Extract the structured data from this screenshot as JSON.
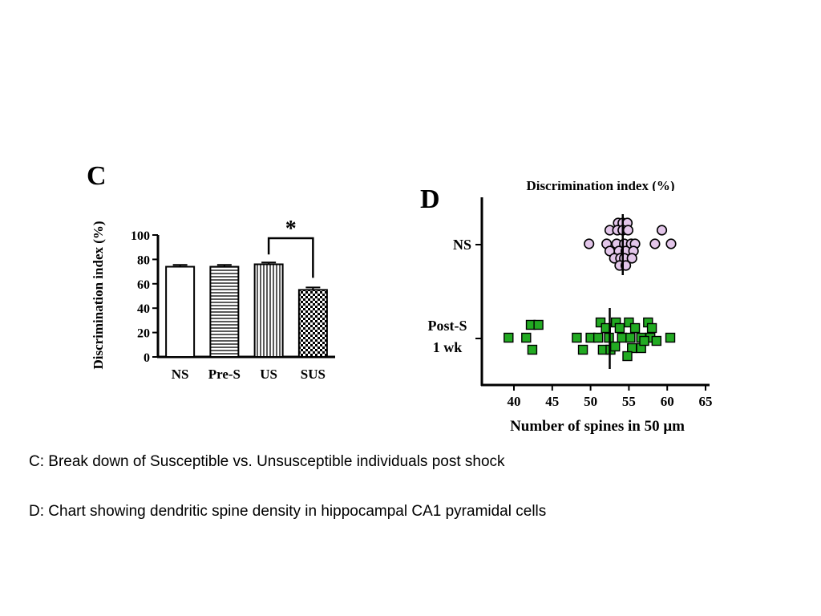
{
  "chart_data": [
    {
      "panel_label": "C",
      "type": "bar",
      "ylabel": "Discrimination index (%)",
      "ylim": [
        0,
        100
      ],
      "yticks": [
        0,
        20,
        40,
        60,
        80,
        100
      ],
      "categories": [
        "NS",
        "Pre-S",
        "US",
        "SUS"
      ],
      "values": [
        74,
        74,
        76,
        55
      ],
      "errors": [
        1.5,
        1.5,
        1.5,
        2
      ],
      "patterns": [
        "white",
        "horizontal-lines",
        "vertical-lines",
        "checker"
      ],
      "significance": {
        "from": "US",
        "to": "SUS",
        "label": "*"
      }
    },
    {
      "panel_label": "D",
      "type": "scatter",
      "top_label": "Discrimination index (%)",
      "xlabel": "Number of spines in 50 μm",
      "xlim": [
        37,
        65
      ],
      "xticks": [
        40,
        45,
        50,
        55,
        60,
        65
      ],
      "series": [
        {
          "name": "NS",
          "color": "#e3c6ea",
          "marker": "circle",
          "mean": 54.2,
          "x": [
            53.6,
            54.2,
            54.8,
            52.5,
            53.5,
            54.2,
            54.9,
            59.3,
            49.8,
            52.1,
            53.4,
            54.4,
            55.3,
            55.8,
            58.4,
            60.5,
            52.5,
            53.7,
            54.6,
            55.6,
            53.1,
            53.9,
            54.4,
            55.4,
            53.8,
            54.6
          ],
          "y_offset": [
            -27,
            -27,
            -27,
            -18,
            -18,
            -18,
            -18,
            -18,
            -1,
            -1,
            -1,
            -1,
            -1,
            -1,
            -1,
            -1,
            8,
            8,
            8,
            8,
            17,
            17,
            17,
            17,
            26,
            26
          ]
        },
        {
          "name": "Post-S 1 wk",
          "color": "#22aa22",
          "marker": "square",
          "mean": 52.5,
          "x": [
            42.2,
            43.2,
            51.3,
            53.3,
            55.0,
            57.5,
            52.0,
            53.8,
            55.8,
            58.0,
            39.3,
            41.6,
            48.2,
            50.0,
            51.0,
            52.4,
            54.1,
            55.2,
            56.6,
            57.8,
            60.4,
            42.4,
            49.0,
            51.6,
            52.6,
            53.2,
            55.4,
            56.6,
            57.0,
            58.6,
            54.8
          ],
          "y_offset": [
            -17,
            -17,
            -20,
            -20,
            -20,
            -20,
            -13,
            -13,
            -13,
            -13,
            -1,
            -1,
            -1,
            -1,
            -1,
            -1,
            -1,
            -1,
            -1,
            -1,
            -1,
            14,
            14,
            14,
            14,
            10,
            12,
            12,
            3,
            3,
            22
          ]
        }
      ]
    }
  ],
  "captions": {
    "c": "C: Break down of Susceptible vs. Unsusceptible individuals post shock",
    "d": "D: Chart showing dendritic spine density in hippocampal CA1 pyramidal cells"
  }
}
